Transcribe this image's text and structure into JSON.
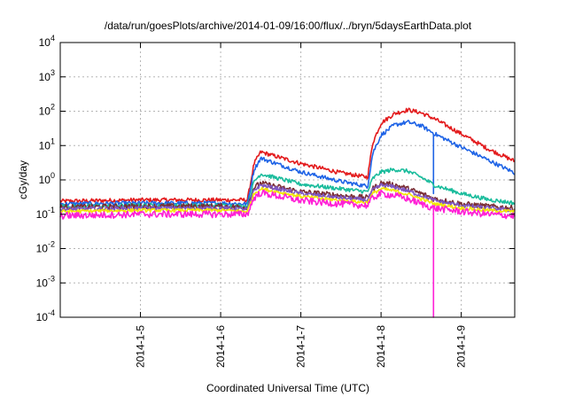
{
  "chart_data": {
    "type": "line",
    "title": "/data/run/goesPlots/archive/2014-01-09/16:00/flux/../bryn/5daysEarthData.plot",
    "xlabel": "Coordinated Universal Time (UTC)",
    "ylabel": "cGy/day",
    "yscale": "log",
    "ylim": [
      0.0001,
      10000
    ],
    "yticks": [
      {
        "value": 0.0001,
        "base": "10",
        "exp": "-4"
      },
      {
        "value": 0.001,
        "base": "10",
        "exp": "-3"
      },
      {
        "value": 0.01,
        "base": "10",
        "exp": "-2"
      },
      {
        "value": 0.1,
        "base": "10",
        "exp": "-1"
      },
      {
        "value": 1,
        "base": "10",
        "exp": "0"
      },
      {
        "value": 10,
        "base": "10",
        "exp": "1"
      },
      {
        "value": 100,
        "base": "10",
        "exp": "2"
      },
      {
        "value": 1000,
        "base": "10",
        "exp": "3"
      },
      {
        "value": 10000,
        "base": "10",
        "exp": "4"
      }
    ],
    "xlim": [
      "2014-01-04T00:00",
      "2014-01-09T16:00"
    ],
    "xticks": [
      {
        "value": "2014-01-05T00:00",
        "label": "2014-1-5"
      },
      {
        "value": "2014-01-06T00:00",
        "label": "2014-1-6"
      },
      {
        "value": "2014-01-07T00:00",
        "label": "2014-1-7"
      },
      {
        "value": "2014-01-08T00:00",
        "label": "2014-1-8"
      },
      {
        "value": "2014-01-09T00:00",
        "label": "2014-1-9"
      }
    ],
    "grid": true,
    "series": [
      {
        "color": "#e31a1c",
        "noise": 0.06,
        "points": [
          [
            "2014-01-04T00:00",
            0.24
          ],
          [
            "2014-01-05T00:00",
            0.26
          ],
          [
            "2014-01-06T00:00",
            0.26
          ],
          [
            "2014-01-06T08:00",
            0.26
          ],
          [
            "2014-01-06T10:00",
            3.0
          ],
          [
            "2014-01-06T12:00",
            6.5
          ],
          [
            "2014-01-07T00:00",
            3.0
          ],
          [
            "2014-01-07T12:00",
            1.6
          ],
          [
            "2014-01-07T20:00",
            1.2
          ],
          [
            "2014-01-07T21:30",
            12
          ],
          [
            "2014-01-08T00:00",
            45
          ],
          [
            "2014-01-08T04:00",
            85
          ],
          [
            "2014-01-08T08:00",
            110
          ],
          [
            "2014-01-08T12:00",
            90
          ],
          [
            "2014-01-08T16:00",
            60
          ],
          [
            "2014-01-09T00:00",
            22
          ],
          [
            "2014-01-09T08:00",
            8
          ],
          [
            "2014-01-09T16:00",
            3.5
          ]
        ]
      },
      {
        "color": "#1e63e6",
        "noise": 0.06,
        "dip": {
          "x": "2014-01-08T15:30",
          "y": 0.4
        },
        "points": [
          [
            "2014-01-04T00:00",
            0.2
          ],
          [
            "2014-01-05T00:00",
            0.21
          ],
          [
            "2014-01-06T00:00",
            0.21
          ],
          [
            "2014-01-06T08:00",
            0.2
          ],
          [
            "2014-01-06T10:00",
            2.0
          ],
          [
            "2014-01-06T12:00",
            4.3
          ],
          [
            "2014-01-07T00:00",
            1.7
          ],
          [
            "2014-01-07T12:00",
            0.9
          ],
          [
            "2014-01-07T20:00",
            0.65
          ],
          [
            "2014-01-07T21:30",
            6
          ],
          [
            "2014-01-08T00:00",
            20
          ],
          [
            "2014-01-08T04:00",
            40
          ],
          [
            "2014-01-08T08:00",
            48
          ],
          [
            "2014-01-08T12:00",
            38
          ],
          [
            "2014-01-08T16:00",
            22
          ],
          [
            "2014-01-09T00:00",
            9
          ],
          [
            "2014-01-09T08:00",
            3.8
          ],
          [
            "2014-01-09T16:00",
            1.6
          ]
        ]
      },
      {
        "color": "#1abc9c",
        "noise": 0.06,
        "points": [
          [
            "2014-01-04T00:00",
            0.17
          ],
          [
            "2014-01-05T00:00",
            0.18
          ],
          [
            "2014-01-06T00:00",
            0.18
          ],
          [
            "2014-01-06T08:00",
            0.17
          ],
          [
            "2014-01-06T10:00",
            0.9
          ],
          [
            "2014-01-06T12:00",
            1.5
          ],
          [
            "2014-01-07T00:00",
            0.75
          ],
          [
            "2014-01-07T12:00",
            0.55
          ],
          [
            "2014-01-07T20:00",
            0.45
          ],
          [
            "2014-01-07T21:30",
            1.1
          ],
          [
            "2014-01-08T00:00",
            1.7
          ],
          [
            "2014-01-08T04:00",
            2.0
          ],
          [
            "2014-01-08T08:00",
            1.8
          ],
          [
            "2014-01-08T12:00",
            1.2
          ],
          [
            "2014-01-08T16:00",
            0.7
          ],
          [
            "2014-01-09T00:00",
            0.4
          ],
          [
            "2014-01-09T08:00",
            0.27
          ],
          [
            "2014-01-09T16:00",
            0.21
          ]
        ]
      },
      {
        "color": "#7a2e35",
        "noise": 0.08,
        "points": [
          [
            "2014-01-04T00:00",
            0.16
          ],
          [
            "2014-01-05T00:00",
            0.17
          ],
          [
            "2014-01-06T00:00",
            0.17
          ],
          [
            "2014-01-06T08:00",
            0.16
          ],
          [
            "2014-01-06T10:00",
            0.6
          ],
          [
            "2014-01-06T12:00",
            0.8
          ],
          [
            "2014-01-07T00:00",
            0.45
          ],
          [
            "2014-01-07T12:00",
            0.35
          ],
          [
            "2014-01-07T20:00",
            0.3
          ],
          [
            "2014-01-07T21:30",
            0.55
          ],
          [
            "2014-01-08T00:00",
            0.8
          ],
          [
            "2014-01-08T04:00",
            0.72
          ],
          [
            "2014-01-08T08:00",
            0.55
          ],
          [
            "2014-01-08T12:00",
            0.4
          ],
          [
            "2014-01-08T16:00",
            0.28
          ],
          [
            "2014-01-09T00:00",
            0.2
          ],
          [
            "2014-01-09T08:00",
            0.17
          ],
          [
            "2014-01-09T16:00",
            0.15
          ]
        ]
      },
      {
        "color": "#7e57c2",
        "noise": 0.06,
        "points": [
          [
            "2014-01-04T00:00",
            0.14
          ],
          [
            "2014-01-05T00:00",
            0.15
          ],
          [
            "2014-01-06T00:00",
            0.15
          ],
          [
            "2014-01-06T08:00",
            0.14
          ],
          [
            "2014-01-06T10:00",
            0.5
          ],
          [
            "2014-01-06T12:00",
            0.7
          ],
          [
            "2014-01-07T00:00",
            0.4
          ],
          [
            "2014-01-07T12:00",
            0.3
          ],
          [
            "2014-01-07T20:00",
            0.26
          ],
          [
            "2014-01-07T21:30",
            0.5
          ],
          [
            "2014-01-08T00:00",
            0.7
          ],
          [
            "2014-01-08T04:00",
            0.62
          ],
          [
            "2014-01-08T08:00",
            0.48
          ],
          [
            "2014-01-08T12:00",
            0.35
          ],
          [
            "2014-01-08T16:00",
            0.25
          ],
          [
            "2014-01-09T00:00",
            0.18
          ],
          [
            "2014-01-09T08:00",
            0.15
          ],
          [
            "2014-01-09T16:00",
            0.13
          ]
        ]
      },
      {
        "color": "#f2e600",
        "noise": 0.05,
        "points": [
          [
            "2014-01-04T00:00",
            0.12
          ],
          [
            "2014-01-05T00:00",
            0.13
          ],
          [
            "2014-01-06T00:00",
            0.13
          ],
          [
            "2014-01-06T08:00",
            0.12
          ],
          [
            "2014-01-06T10:00",
            0.4
          ],
          [
            "2014-01-06T12:00",
            0.55
          ],
          [
            "2014-01-07T00:00",
            0.33
          ],
          [
            "2014-01-07T12:00",
            0.25
          ],
          [
            "2014-01-07T20:00",
            0.22
          ],
          [
            "2014-01-07T21:30",
            0.4
          ],
          [
            "2014-01-08T00:00",
            0.55
          ],
          [
            "2014-01-08T04:00",
            0.48
          ],
          [
            "2014-01-08T08:00",
            0.38
          ],
          [
            "2014-01-08T12:00",
            0.28
          ],
          [
            "2014-01-08T16:00",
            0.2
          ],
          [
            "2014-01-09T00:00",
            0.15
          ],
          [
            "2014-01-09T08:00",
            0.13
          ],
          [
            "2014-01-09T16:00",
            0.12
          ]
        ]
      },
      {
        "color": "#ff1fd6",
        "noise": 0.1,
        "dip": {
          "x": "2014-01-08T15:30",
          "y": 0.0001
        },
        "points": [
          [
            "2014-01-04T00:00",
            0.09
          ],
          [
            "2014-01-05T00:00",
            0.1
          ],
          [
            "2014-01-06T00:00",
            0.1
          ],
          [
            "2014-01-06T08:00",
            0.1
          ],
          [
            "2014-01-06T10:00",
            0.3
          ],
          [
            "2014-01-06T12:00",
            0.42
          ],
          [
            "2014-01-07T00:00",
            0.25
          ],
          [
            "2014-01-07T12:00",
            0.2
          ],
          [
            "2014-01-07T20:00",
            0.18
          ],
          [
            "2014-01-07T21:30",
            0.3
          ],
          [
            "2014-01-08T00:00",
            0.4
          ],
          [
            "2014-01-08T04:00",
            0.35
          ],
          [
            "2014-01-08T08:00",
            0.28
          ],
          [
            "2014-01-08T12:00",
            0.2
          ],
          [
            "2014-01-08T16:00",
            0.15
          ],
          [
            "2014-01-09T00:00",
            0.12
          ],
          [
            "2014-01-09T08:00",
            0.1
          ],
          [
            "2014-01-09T16:00",
            0.09
          ]
        ]
      }
    ]
  }
}
